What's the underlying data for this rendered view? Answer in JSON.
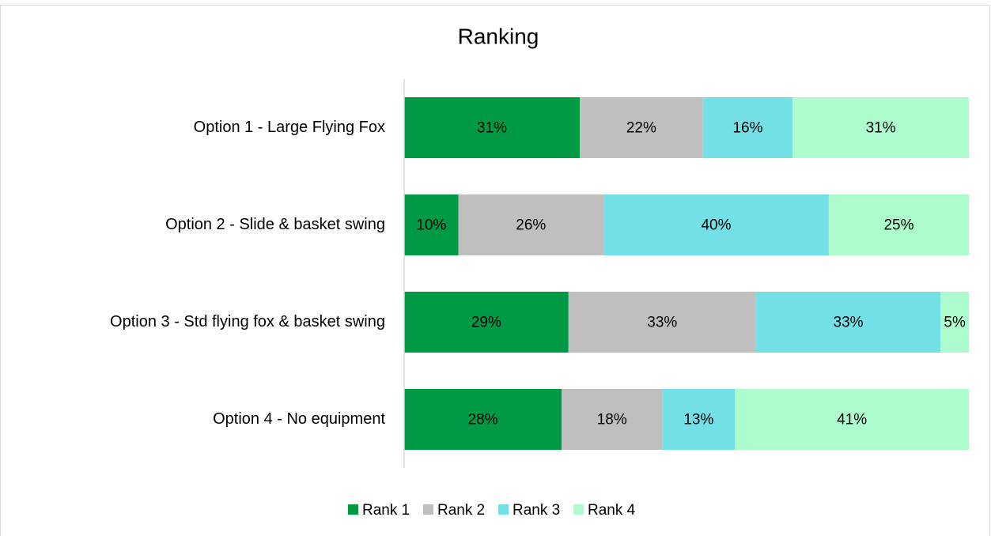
{
  "chart_data": {
    "type": "bar",
    "orientation": "horizontal",
    "stacked": true,
    "title": "Ranking",
    "categories": [
      "Option 1 - Large Flying Fox",
      "Option 2 - Slide & basket swing",
      "Option 3 - Std flying fox & basket swing",
      "Option 4 - No equipment"
    ],
    "xlim": [
      0,
      100
    ],
    "series": [
      {
        "name": "Rank 1",
        "color": "#009a44",
        "values": [
          31.1,
          9.6,
          29.1,
          27.9
        ],
        "value_labels": [
          "31%",
          "10%",
          "29%",
          "28%"
        ]
      },
      {
        "name": "Rank 2",
        "color": "#bfbfbf",
        "values": [
          21.8,
          25.7,
          33.2,
          17.8
        ],
        "value_labels": [
          "22%",
          "26%",
          "33%",
          "18%"
        ]
      },
      {
        "name": "Rank 3",
        "color": "#72e0e4",
        "values": [
          15.9,
          39.9,
          32.7,
          12.9
        ],
        "value_labels": [
          "16%",
          "40%",
          "33%",
          "13%"
        ]
      },
      {
        "name": "Rank 4",
        "color": "#adfccd",
        "values": [
          31.2,
          24.8,
          5.0,
          41.4
        ],
        "value_labels": [
          "31%",
          "25%",
          "5%",
          "41%"
        ]
      }
    ],
    "legend": "bottom"
  }
}
